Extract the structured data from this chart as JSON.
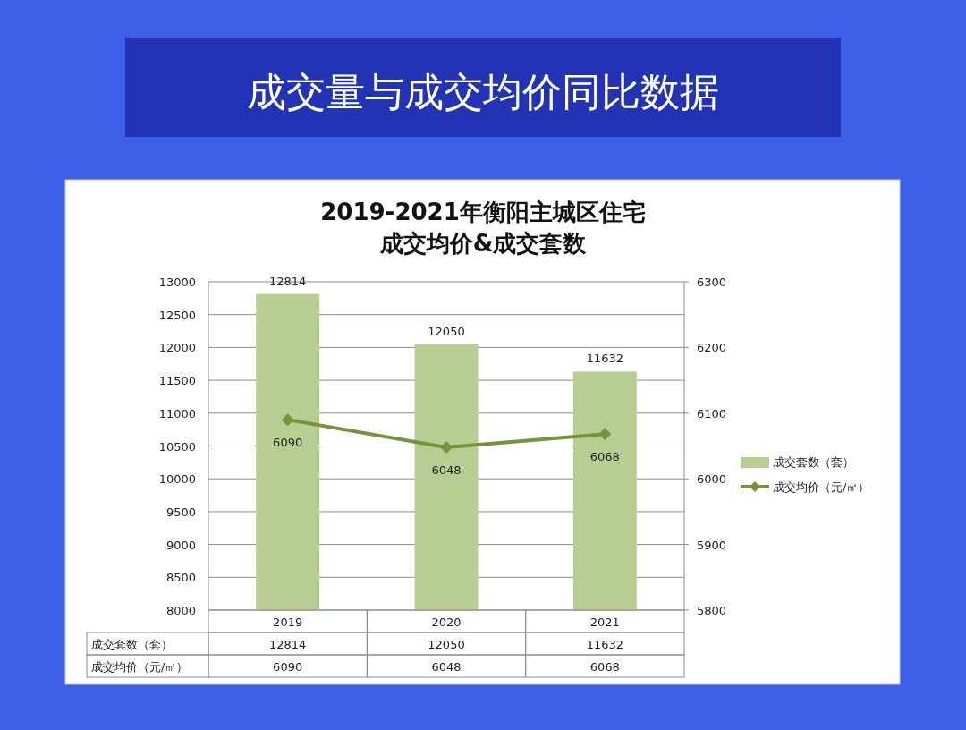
{
  "chart_data": {
    "type": "bar",
    "title": "成交量与成交均价同比数据",
    "subtitle": "2019-2021年衡阳主城区住宅成交均价&成交套数",
    "categories": [
      "2019",
      "2020",
      "2021"
    ],
    "series": [
      {
        "name": "成交套数（套）",
        "color": "#b7cd92",
        "values": [
          12814,
          12050,
          11632
        ],
        "value_labels": [
          "12814",
          "12050",
          "11632"
        ]
      },
      {
        "name": "成交均价（元/㎡）",
        "type": "line",
        "axis": "y2",
        "color": "#77933c",
        "marker": "diamond",
        "values": [
          6090,
          6048,
          6068
        ],
        "value_labels": [
          "6090",
          "6048",
          "6068"
        ]
      }
    ],
    "ylim": [
      8000,
      13000
    ],
    "yticks": [
      8000,
      8500,
      9000,
      9500,
      10000,
      10500,
      11000,
      11500,
      12000,
      12500,
      13000
    ],
    "y2lim": [
      5800,
      6300
    ],
    "y2ticks": [
      5800,
      5900,
      6000,
      6100,
      6200,
      6300
    ],
    "annotations": [
      "12814",
      "12050",
      "11632",
      "6090",
      "6048",
      "6068"
    ],
    "grid": "y",
    "legend": "right",
    "data_labels": true
  }
}
